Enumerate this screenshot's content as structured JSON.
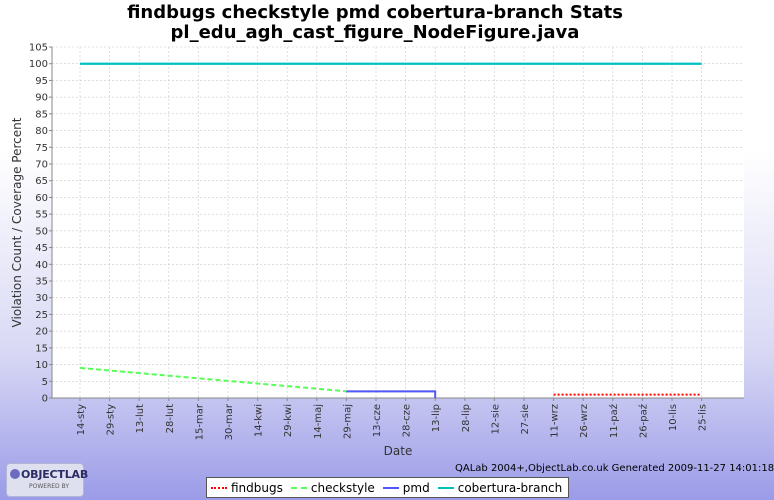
{
  "chart_data": {
    "type": "line",
    "title": "findbugs checkstyle pmd cobertura-branch  Stats",
    "subtitle": "pl_edu_agh_cast_figure_NodeFigure.java",
    "xlabel": "Date",
    "ylabel": "Violation Count / Coverage Percent",
    "ylim": [
      0,
      105
    ],
    "yticks": [
      0,
      5,
      10,
      15,
      20,
      25,
      30,
      35,
      40,
      45,
      50,
      55,
      60,
      65,
      70,
      75,
      80,
      85,
      90,
      95,
      100,
      105
    ],
    "grid": true,
    "legend_position": "bottom",
    "xticks": [
      "14-sty",
      "29-sty",
      "13-lut",
      "28-lut",
      "15-mar",
      "30-mar",
      "14-kwi",
      "29-kwi",
      "14-maj",
      "29-maj",
      "13-cze",
      "28-cze",
      "13-lip",
      "28-lip",
      "12-sie",
      "27-sie",
      "11-wrz",
      "26-wrz",
      "11-paź",
      "26-paź",
      "10-lis",
      "25-lis"
    ],
    "series": [
      {
        "name": "findbugs",
        "color": "#ff0000",
        "style": "dotted",
        "points": [
          [
            "11-wrz",
            1
          ],
          [
            "25-lis",
            1
          ]
        ]
      },
      {
        "name": "checkstyle",
        "color": "#55ff55",
        "style": "dashed",
        "points": [
          [
            "14-sty",
            9
          ],
          [
            "29-maj",
            2
          ],
          [
            "13-lip",
            2
          ]
        ]
      },
      {
        "name": "pmd",
        "color": "#5555ff",
        "style": "solid",
        "points": [
          [
            "29-maj",
            2
          ],
          [
            "13-lip",
            2
          ],
          [
            "13-lip",
            0
          ]
        ]
      },
      {
        "name": "cobertura-branch",
        "color": "#00c0c0",
        "style": "solid",
        "points": [
          [
            "14-sty",
            100
          ],
          [
            "25-lis",
            100
          ]
        ]
      }
    ]
  },
  "footer": {
    "text": "QALab 2004+,ObjectLab.co.uk Generated 2009-11-27 14:01:18"
  },
  "logo": {
    "name": "OBJECTLAB",
    "tagline": "POWERED BY"
  }
}
